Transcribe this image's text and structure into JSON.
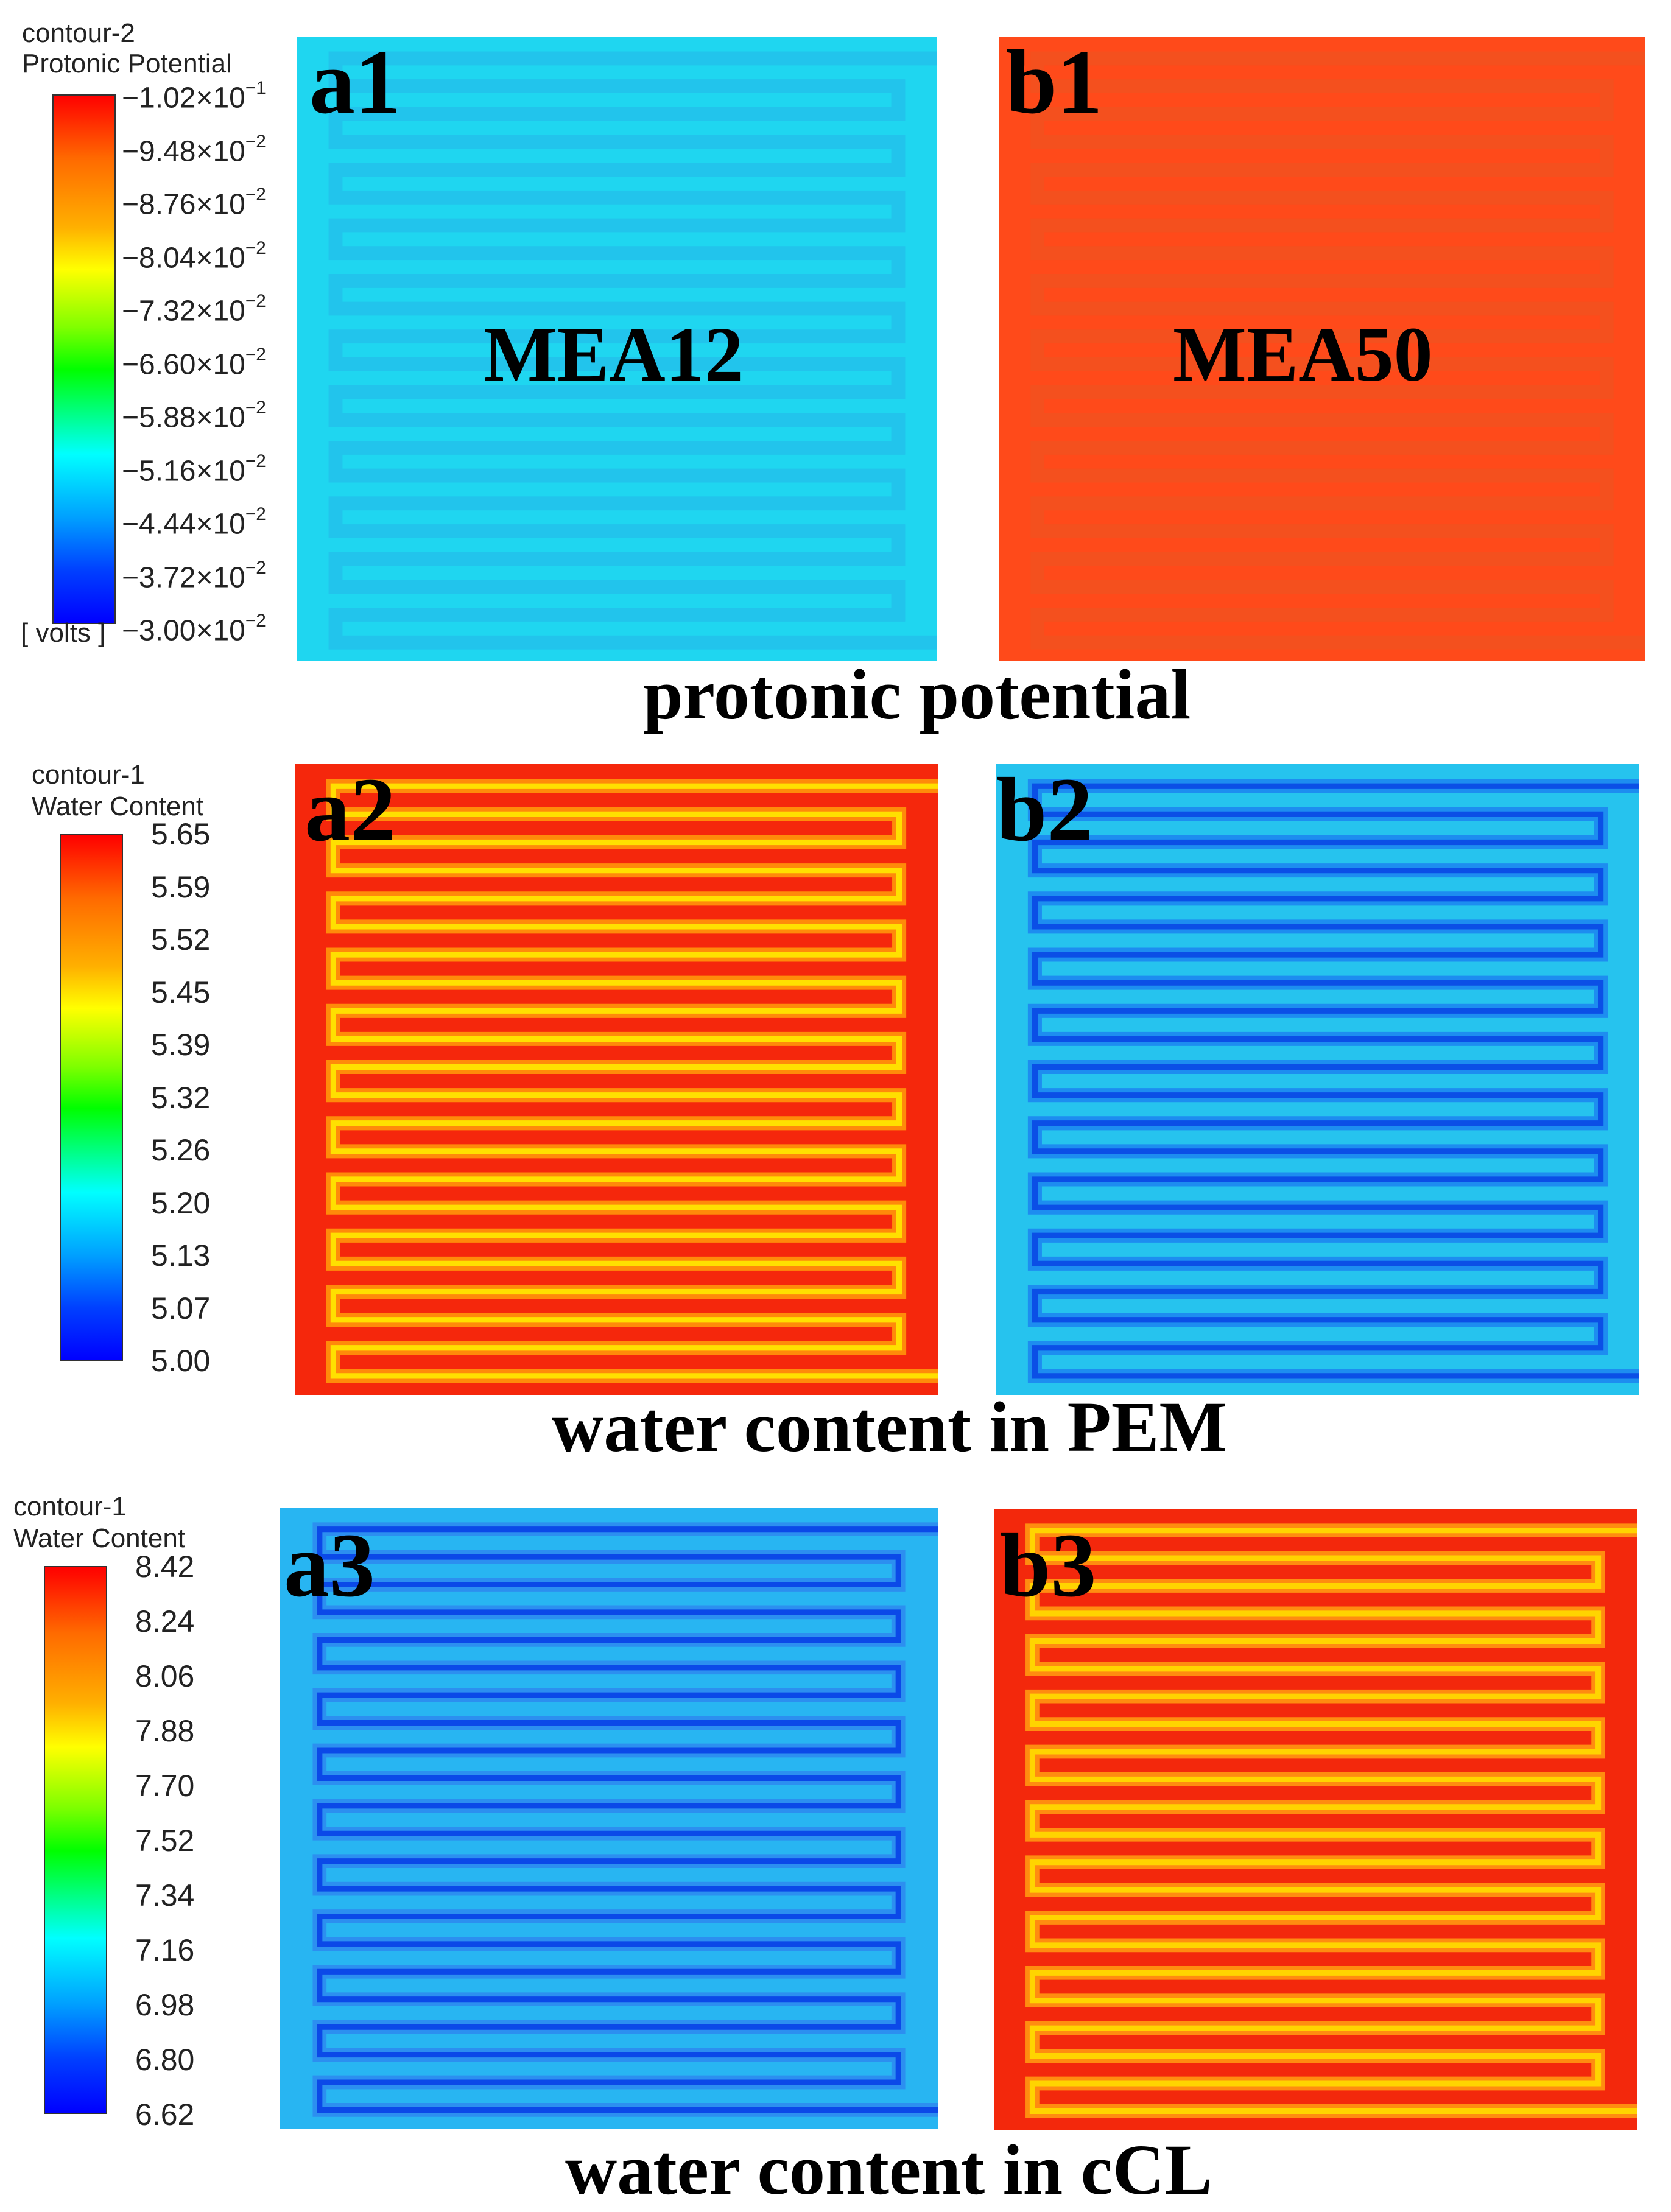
{
  "legend1": {
    "title_line1": "contour-2",
    "title_line2": "Protonic Potential",
    "units": "[ volts ]",
    "ticks": [
      {
        "mantissa": "−1.02×10",
        "exp": "−1"
      },
      {
        "mantissa": "−9.48×10",
        "exp": "−2"
      },
      {
        "mantissa": "−8.76×10",
        "exp": "−2"
      },
      {
        "mantissa": "−8.04×10",
        "exp": "−2"
      },
      {
        "mantissa": "−7.32×10",
        "exp": "−2"
      },
      {
        "mantissa": "−6.60×10",
        "exp": "−2"
      },
      {
        "mantissa": "−5.88×10",
        "exp": "−2"
      },
      {
        "mantissa": "−5.16×10",
        "exp": "−2"
      },
      {
        "mantissa": "−4.44×10",
        "exp": "−2"
      },
      {
        "mantissa": "−3.72×10",
        "exp": "−2"
      },
      {
        "mantissa": "−3.00×10",
        "exp": "−2"
      }
    ]
  },
  "legend2": {
    "title_line1": "contour-1",
    "title_line2": "Water Content",
    "ticks": [
      "5.65",
      "5.59",
      "5.52",
      "5.45",
      "5.39",
      "5.32",
      "5.26",
      "5.20",
      "5.13",
      "5.07",
      "5.00"
    ]
  },
  "legend3": {
    "title_line1": "contour-1",
    "title_line2": "Water Content",
    "ticks": [
      "8.42",
      "8.24",
      "8.06",
      "7.88",
      "7.70",
      "7.52",
      "7.34",
      "7.16",
      "6.98",
      "6.80",
      "6.62"
    ]
  },
  "panels": {
    "a1": {
      "label": "a1",
      "inner": "MEA12",
      "base": "#1fd6f0",
      "channel": "#22c4ec",
      "glow": "#22c4ec"
    },
    "b1": {
      "label": "b1",
      "inner": "MEA50",
      "base": "#ff4a1a",
      "channel": "#f4501e",
      "glow": "#f4501e"
    },
    "a2": {
      "label": "a2",
      "base": "#f5270c",
      "channel": "#ff8a0a",
      "glow": "#ffe000"
    },
    "b2": {
      "label": "b2",
      "base": "#26c3ee",
      "channel": "#1d8df0",
      "glow": "#0b4fe6"
    },
    "a3": {
      "label": "a3",
      "base": "#28b5f2",
      "channel": "#2c8ff0",
      "glow": "#0b49e8"
    },
    "b3": {
      "label": "b3",
      "base": "#f3280c",
      "channel": "#ff8c10",
      "glow": "#ffd400"
    }
  },
  "captions": {
    "row1": "protonic potential",
    "row2": "water content in PEM",
    "row3": "water content in cCL"
  }
}
